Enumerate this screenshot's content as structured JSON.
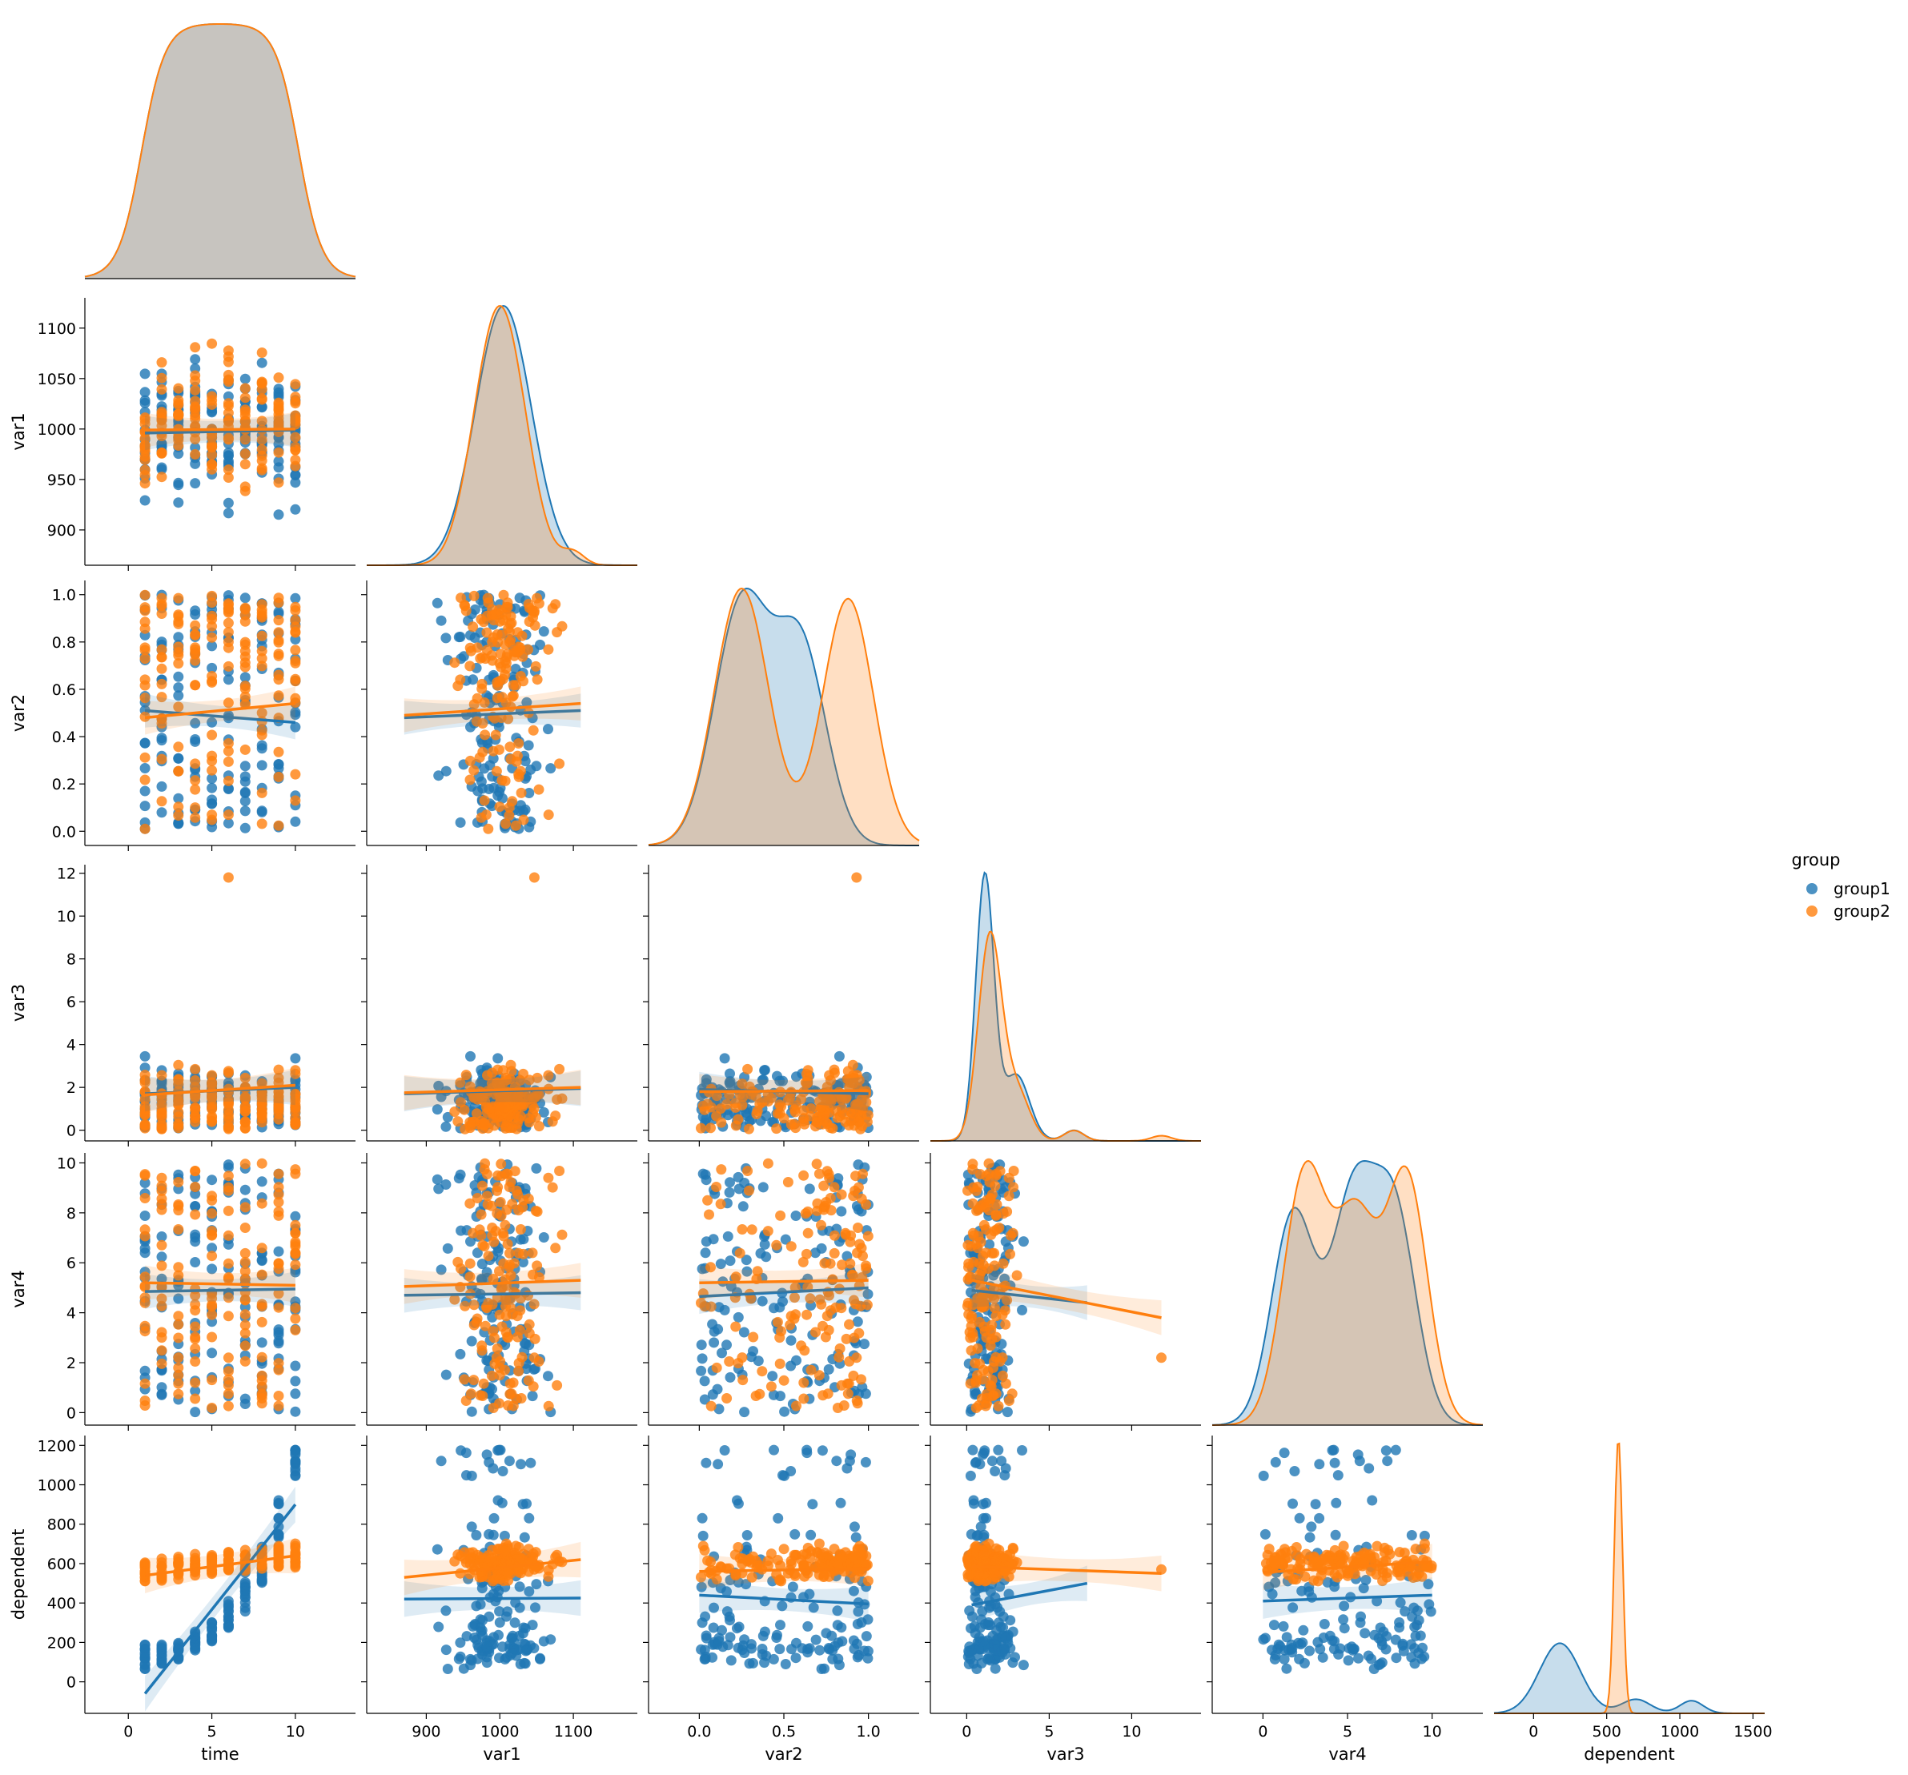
{
  "colors": {
    "group1": "#1f77b4",
    "group2": "#ff7f0e",
    "overlap": "#c7c4bf"
  },
  "legend": {
    "title": "group",
    "entries": [
      "group1",
      "group2"
    ],
    "placement": "right-center"
  },
  "chart_data": {
    "type": "scatter",
    "title": "",
    "variables": [
      "time",
      "var1",
      "var2",
      "var3",
      "var4",
      "dependent"
    ],
    "axis_labels": {
      "x": [
        "time",
        "var1",
        "var2",
        "var3",
        "var4",
        "dependent"
      ],
      "y": [
        "var1",
        "var2",
        "var3",
        "var4",
        "dependent"
      ]
    },
    "tick_labels": {
      "time": [
        "0",
        "5",
        "10"
      ],
      "var1": [
        "900",
        "1000",
        "1100"
      ],
      "var1_y": [
        "900",
        "950",
        "1000",
        "1050",
        "1100"
      ],
      "var2": [
        "0.0",
        "0.5",
        "1.0"
      ],
      "var2_y": [
        "0.0",
        "0.2",
        "0.4",
        "0.6",
        "0.8",
        "1.0"
      ],
      "var3": [
        "0",
        "5",
        "10"
      ],
      "var3_y": [
        "0",
        "2",
        "4",
        "6",
        "8",
        "10",
        "12"
      ],
      "var4": [
        "0",
        "5",
        "10"
      ],
      "var4_y": [
        "0",
        "2",
        "4",
        "6",
        "8",
        "10"
      ],
      "dependent": [
        "0",
        "500",
        "1000",
        "1500"
      ],
      "dependent_y": [
        "0",
        "200",
        "400",
        "600",
        "800",
        "1000",
        "1200"
      ]
    },
    "ranges": {
      "time": [
        -2.6,
        13.6
      ],
      "var1": [
        819,
        1187
      ],
      "var1_y": [
        865,
        1130
      ],
      "var2": [
        -0.3,
        1.3
      ],
      "var2_y": [
        -0.06,
        1.06
      ],
      "var3": [
        -2.2,
        14.2
      ],
      "var3_y": [
        -0.5,
        12.4
      ],
      "var4": [
        -3.0,
        13.0
      ],
      "var4_y": [
        -0.5,
        10.4
      ],
      "dependent": [
        -270,
        1580
      ],
      "dependent_y": [
        -160,
        1250
      ]
    },
    "series": [
      {
        "name": "group1",
        "time_levels": [
          1,
          2,
          3,
          4,
          5,
          6,
          7,
          8,
          9,
          10
        ],
        "dependent_clusters": [
          [
            1,
            60,
            190
          ],
          [
            2,
            90,
            190
          ],
          [
            3,
            110,
            200
          ],
          [
            4,
            150,
            260
          ],
          [
            5,
            200,
            320
          ],
          [
            6,
            270,
            420
          ],
          [
            7,
            350,
            560
          ],
          [
            8,
            500,
            700
          ],
          [
            9,
            650,
            930
          ],
          [
            10,
            1040,
            1180
          ]
        ]
      },
      {
        "name": "group2",
        "time_levels": [
          1,
          2,
          3,
          4,
          5,
          6,
          7,
          8,
          9,
          10
        ],
        "dependent_clusters": [
          [
            1,
            500,
            620
          ],
          [
            2,
            510,
            630
          ],
          [
            3,
            520,
            640
          ],
          [
            4,
            530,
            650
          ],
          [
            5,
            540,
            655
          ],
          [
            6,
            550,
            665
          ],
          [
            7,
            560,
            675
          ],
          [
            8,
            570,
            690
          ],
          [
            9,
            575,
            705
          ],
          [
            10,
            580,
            725
          ]
        ]
      }
    ],
    "regression": {
      "time_var1": {
        "group1": [
          [
            1,
            996
          ],
          [
            10,
            999
          ]
        ],
        "group2": [
          [
            1,
            999
          ],
          [
            10,
            1000
          ]
        ]
      },
      "time_var2": {
        "group1": [
          [
            1,
            0.51
          ],
          [
            10,
            0.46
          ]
        ],
        "group2": [
          [
            1,
            0.48
          ],
          [
            10,
            0.54
          ]
        ]
      },
      "time_var3": {
        "group1": [
          [
            1,
            1.7
          ],
          [
            10,
            2.0
          ]
        ],
        "group2": [
          [
            1,
            1.65
          ],
          [
            10,
            2.1
          ]
        ]
      },
      "time_var4": {
        "group1": [
          [
            1,
            4.85
          ],
          [
            10,
            4.95
          ]
        ],
        "group2": [
          [
            1,
            5.2
          ],
          [
            10,
            5.1
          ]
        ]
      },
      "time_dependent": {
        "group1": [
          [
            1,
            -60
          ],
          [
            10,
            900
          ]
        ],
        "group2": [
          [
            1,
            540
          ],
          [
            10,
            640
          ]
        ]
      },
      "var1_var2": {
        "group1": [
          [
            870,
            0.48
          ],
          [
            1110,
            0.51
          ]
        ],
        "group2": [
          [
            870,
            0.49
          ],
          [
            1110,
            0.54
          ]
        ]
      },
      "var1_var3": {
        "group1": [
          [
            870,
            1.7
          ],
          [
            1110,
            1.95
          ]
        ],
        "group2": [
          [
            870,
            1.75
          ],
          [
            1110,
            2.0
          ]
        ]
      },
      "var1_var4": {
        "group1": [
          [
            870,
            4.7
          ],
          [
            1110,
            4.8
          ]
        ],
        "group2": [
          [
            870,
            5.05
          ],
          [
            1110,
            5.3
          ]
        ]
      },
      "var1_dependent": {
        "group1": [
          [
            870,
            420
          ],
          [
            1110,
            425
          ]
        ],
        "group2": [
          [
            870,
            530
          ],
          [
            1110,
            620
          ]
        ]
      },
      "var2_var3": {
        "group1": [
          [
            0,
            1.9
          ],
          [
            1,
            1.7
          ]
        ],
        "group2": [
          [
            0,
            1.8
          ],
          [
            1,
            1.85
          ]
        ]
      },
      "var2_var4": {
        "group1": [
          [
            0,
            4.65
          ],
          [
            1,
            5.0
          ]
        ],
        "group2": [
          [
            0,
            5.2
          ],
          [
            1,
            5.3
          ]
        ]
      },
      "var2_dependent": {
        "group1": [
          [
            0,
            440
          ],
          [
            1,
            395
          ]
        ],
        "group2": [
          [
            0,
            560
          ],
          [
            1,
            575
          ]
        ]
      },
      "var3_var4": {
        "group1": [
          [
            0.3,
            4.9
          ],
          [
            7.3,
            4.4
          ]
        ],
        "group2": [
          [
            0.3,
            5.3
          ],
          [
            11.8,
            3.8
          ]
        ]
      },
      "var3_dependent": {
        "group1": [
          [
            0.3,
            390
          ],
          [
            7.3,
            500
          ]
        ],
        "group2": [
          [
            0.3,
            585
          ],
          [
            11.8,
            550
          ]
        ]
      },
      "var4_dependent": {
        "group1": [
          [
            0,
            410
          ],
          [
            10,
            440
          ]
        ],
        "group2": [
          [
            0,
            555
          ],
          [
            10,
            610
          ]
        ]
      }
    },
    "outlier": {
      "group": "group2",
      "time": 6,
      "var1": 1047,
      "var2": 0.93,
      "var3": 11.8,
      "var4": 2.2,
      "dependent": 570
    },
    "kde": {
      "time": {
        "shape": "flat-top",
        "range": [
          1,
          10
        ]
      },
      "var1": {
        "group1_peak": 1005,
        "group2_peaks": [
          985,
          1015
        ]
      },
      "var2": {
        "group1_peaks": [
          0.25,
          0.6
        ],
        "group2_peaks": [
          0.25,
          0.88
        ]
      },
      "var3": {
        "group1_peak": 1.1,
        "group2_peak": 1.4
      },
      "var4": {
        "group1_peaks": [
          1.8,
          5.3,
          7.8
        ],
        "group2_peaks": [
          2.5,
          8.5
        ]
      },
      "dependent": {
        "group1_peak": 180,
        "group2_peak": 580
      }
    },
    "grid": false
  }
}
